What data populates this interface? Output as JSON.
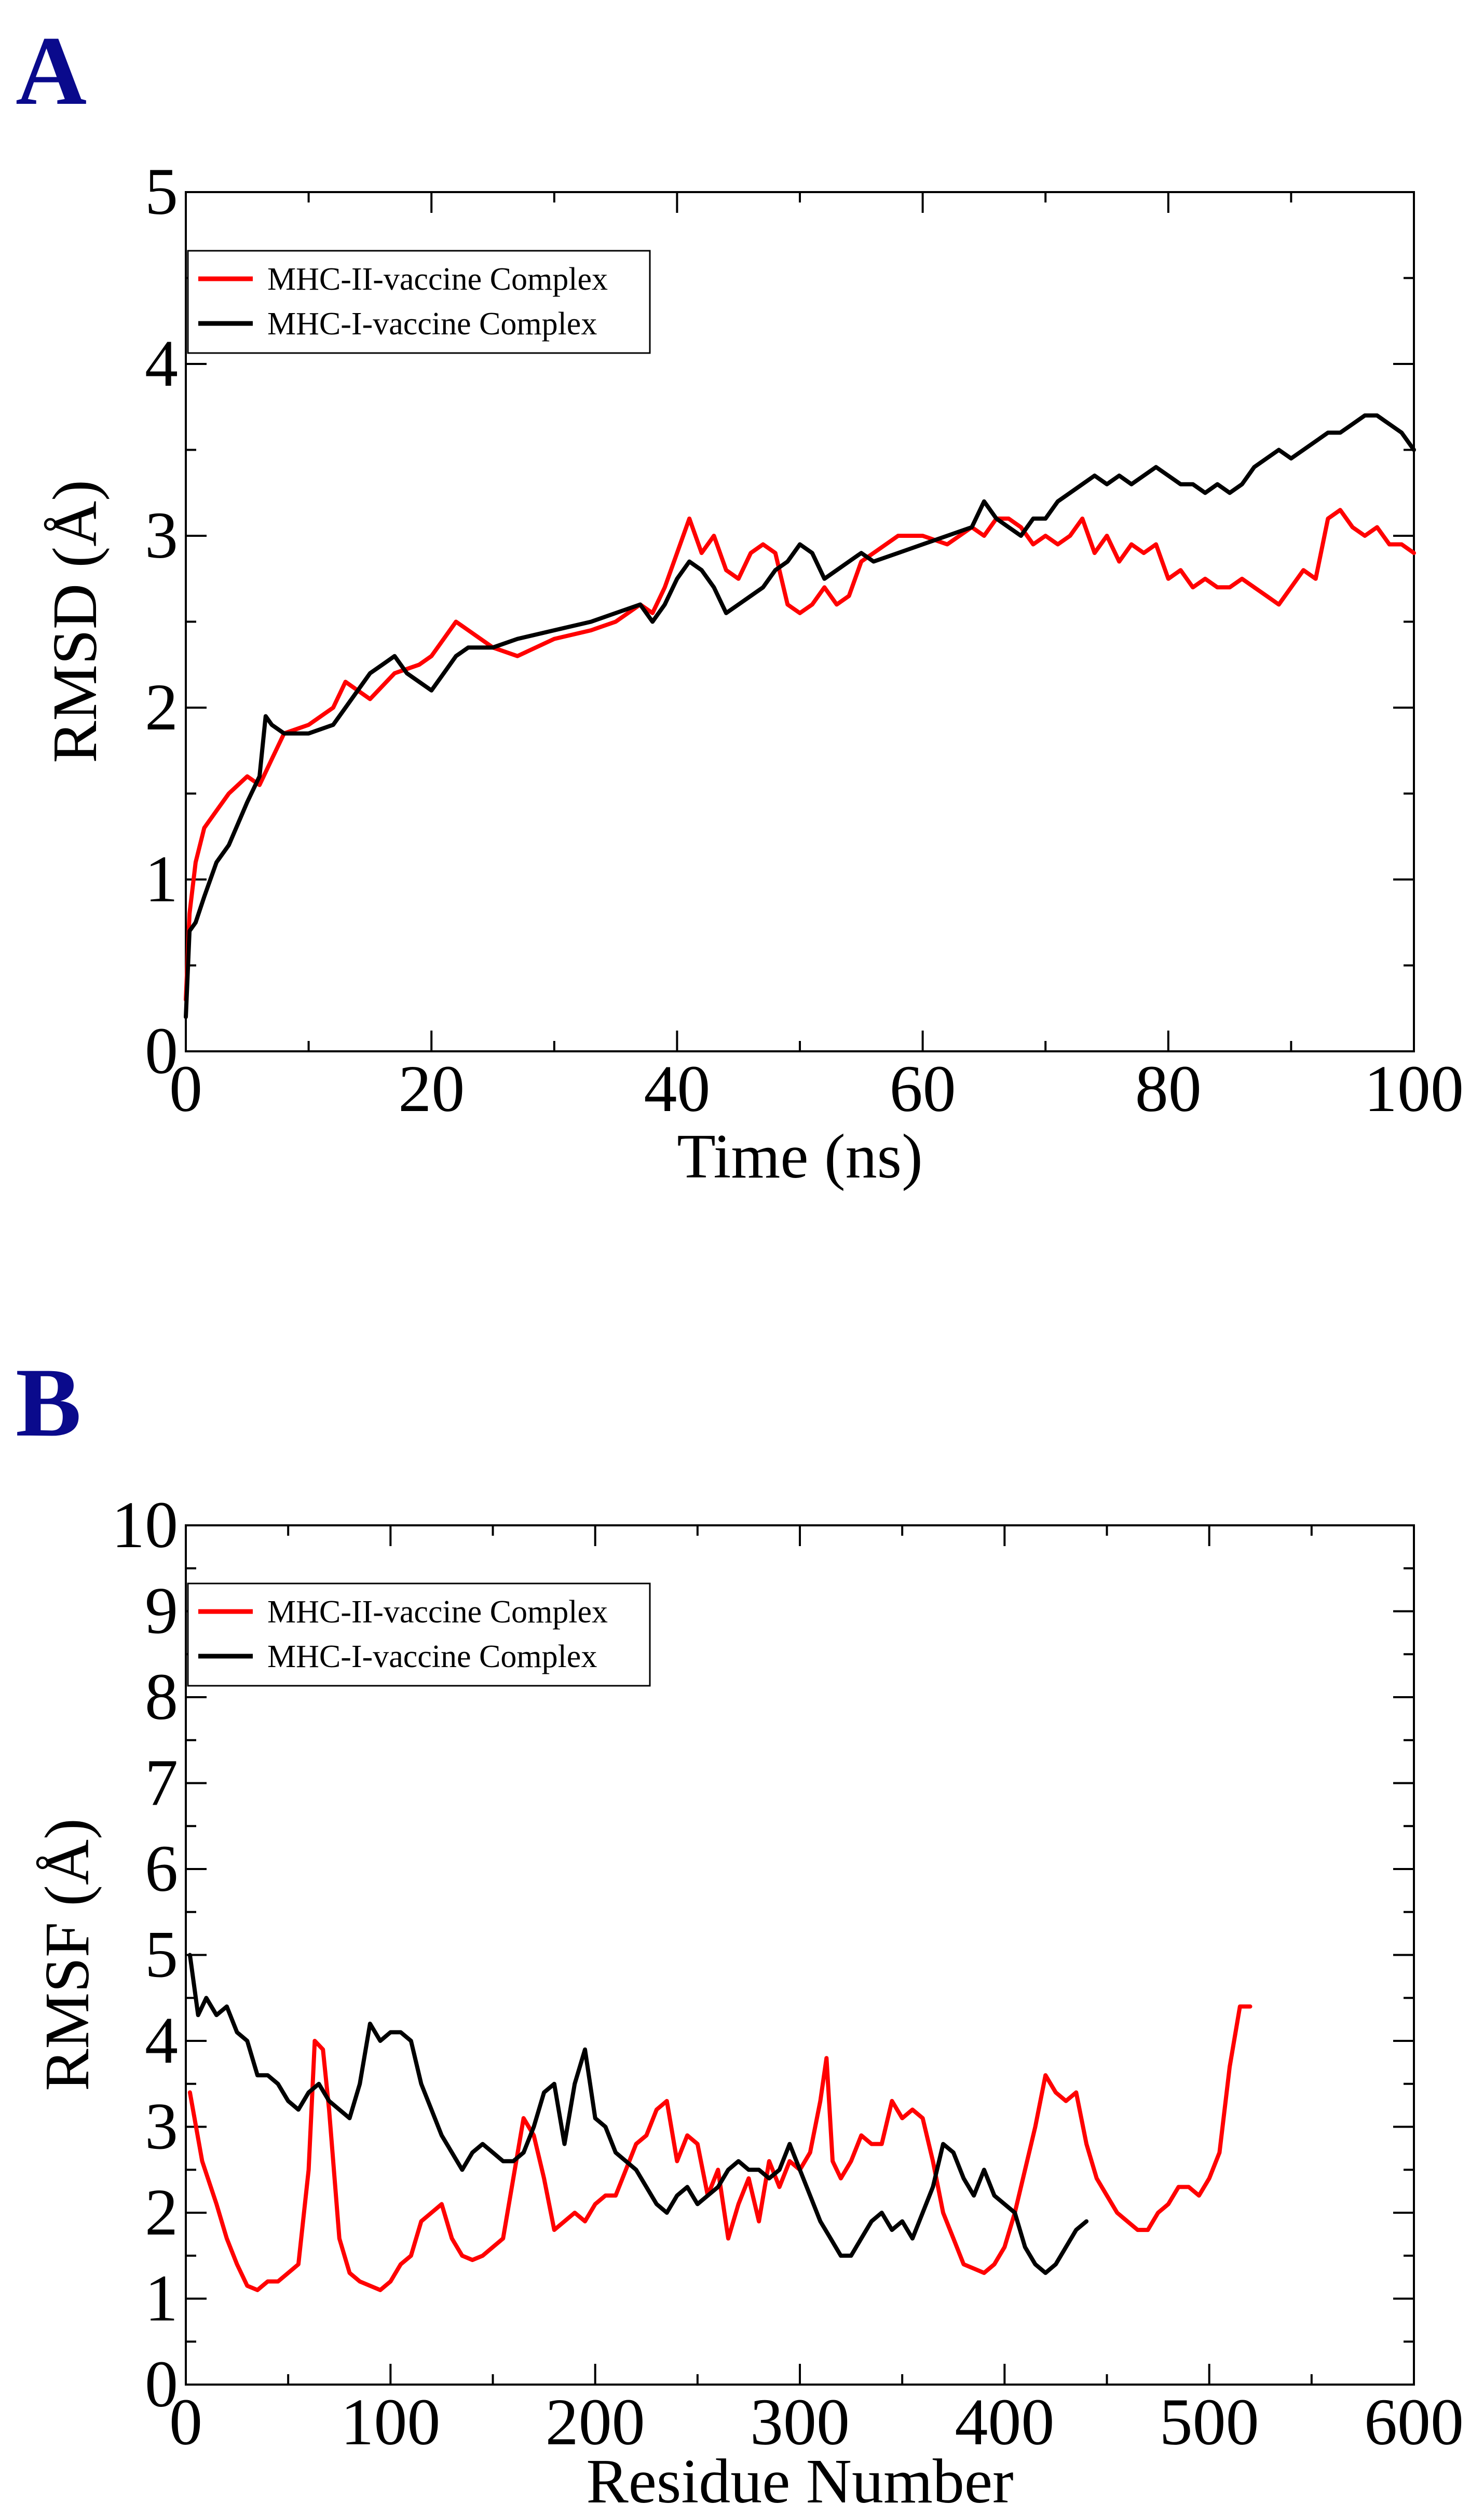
{
  "chart_data": [
    {
      "panel": "A",
      "type": "line",
      "xlabel": "Time (ns)",
      "ylabel": "RMSD (Å)",
      "xlim": [
        0,
        100
      ],
      "ylim": [
        0,
        5
      ],
      "x_ticks": [
        0,
        20,
        40,
        60,
        80,
        100
      ],
      "y_ticks": [
        0,
        1,
        2,
        3,
        4,
        5
      ],
      "legend_position": "top-left",
      "series": [
        {
          "name": "MHC-II-vaccine Complex",
          "color": "#ff0000",
          "x": [
            0,
            0.3,
            0.8,
            1.5,
            2.5,
            3.5,
            5,
            6,
            7,
            8,
            10,
            12,
            13,
            15,
            17,
            19,
            20,
            21,
            22,
            23,
            25,
            27,
            30,
            33,
            35,
            37,
            38,
            39,
            40,
            41,
            42,
            43,
            44,
            45,
            46,
            47,
            48,
            49,
            50,
            51,
            52,
            53,
            54,
            55,
            56,
            58,
            60,
            62,
            64,
            65,
            66,
            67,
            68,
            69,
            70,
            71,
            72,
            73,
            74,
            75,
            76,
            77,
            78,
            79,
            80,
            81,
            82,
            83,
            84,
            85,
            86,
            87,
            88,
            89,
            90,
            91,
            92,
            93,
            94,
            95,
            96,
            97,
            98,
            99,
            100
          ],
          "y": [
            0.3,
            0.8,
            1.1,
            1.3,
            1.4,
            1.5,
            1.6,
            1.55,
            1.7,
            1.85,
            1.9,
            2.0,
            2.15,
            2.05,
            2.2,
            2.25,
            2.3,
            2.4,
            2.5,
            2.45,
            2.35,
            2.3,
            2.4,
            2.45,
            2.5,
            2.6,
            2.55,
            2.7,
            2.9,
            3.1,
            2.9,
            3.0,
            2.8,
            2.75,
            2.9,
            2.95,
            2.9,
            2.6,
            2.55,
            2.6,
            2.7,
            2.6,
            2.65,
            2.85,
            2.9,
            3.0,
            3.0,
            2.95,
            3.05,
            3.0,
            3.1,
            3.1,
            3.05,
            2.95,
            3.0,
            2.95,
            3.0,
            3.1,
            2.9,
            3.0,
            2.85,
            2.95,
            2.9,
            2.95,
            2.75,
            2.8,
            2.7,
            2.75,
            2.7,
            2.7,
            2.75,
            2.7,
            2.65,
            2.6,
            2.7,
            2.8,
            2.75,
            3.1,
            3.15,
            3.05,
            3.0,
            3.05,
            2.95,
            2.95,
            2.9
          ]
        },
        {
          "name": "MHC-I-vaccine Complex",
          "color": "#000000",
          "x": [
            0,
            0.3,
            0.8,
            1.5,
            2.5,
            3.5,
            5,
            6,
            6.5,
            7,
            8,
            10,
            12,
            13,
            15,
            16,
            17,
            18,
            19,
            20,
            21,
            22,
            23,
            25,
            27,
            30,
            33,
            35,
            37,
            38,
            39,
            40,
            41,
            42,
            43,
            44,
            45,
            46,
            47,
            48,
            49,
            50,
            51,
            52,
            53,
            54,
            55,
            56,
            58,
            60,
            62,
            64,
            65,
            66,
            67,
            68,
            69,
            70,
            71,
            72,
            73,
            74,
            75,
            76,
            77,
            78,
            79,
            80,
            81,
            82,
            83,
            84,
            85,
            86,
            87,
            88,
            89,
            90,
            91,
            92,
            93,
            94,
            95,
            96,
            97,
            98,
            99,
            100
          ],
          "y": [
            0.2,
            0.7,
            0.75,
            0.9,
            1.1,
            1.2,
            1.45,
            1.6,
            1.95,
            1.9,
            1.85,
            1.85,
            1.9,
            2.0,
            2.2,
            2.25,
            2.3,
            2.2,
            2.15,
            2.1,
            2.2,
            2.3,
            2.35,
            2.35,
            2.4,
            2.45,
            2.5,
            2.55,
            2.6,
            2.5,
            2.6,
            2.75,
            2.85,
            2.8,
            2.7,
            2.55,
            2.6,
            2.65,
            2.7,
            2.8,
            2.85,
            2.95,
            2.9,
            2.75,
            2.8,
            2.85,
            2.9,
            2.85,
            2.9,
            2.95,
            3.0,
            3.05,
            3.2,
            3.1,
            3.05,
            3.0,
            3.1,
            3.1,
            3.2,
            3.25,
            3.3,
            3.35,
            3.3,
            3.35,
            3.3,
            3.35,
            3.4,
            3.35,
            3.3,
            3.3,
            3.25,
            3.3,
            3.25,
            3.3,
            3.4,
            3.45,
            3.5,
            3.45,
            3.5,
            3.55,
            3.6,
            3.6,
            3.65,
            3.7,
            3.7,
            3.65,
            3.6,
            3.5
          ]
        }
      ]
    },
    {
      "panel": "B",
      "type": "line",
      "xlabel": "Residue Number",
      "ylabel": "RMSF (Å)",
      "xlim": [
        0,
        600
      ],
      "ylim": [
        0,
        10
      ],
      "x_ticks": [
        0,
        100,
        200,
        300,
        400,
        500,
        600
      ],
      "y_ticks": [
        0,
        1,
        2,
        3,
        4,
        5,
        6,
        7,
        8,
        9,
        10
      ],
      "legend_position": "top-left",
      "series": [
        {
          "name": "MHC-II-vaccine Complex",
          "color": "#ff0000",
          "x": [
            2,
            8,
            15,
            20,
            25,
            30,
            35,
            40,
            45,
            50,
            55,
            60,
            63,
            67,
            70,
            75,
            80,
            85,
            90,
            95,
            100,
            105,
            110,
            115,
            120,
            125,
            130,
            135,
            140,
            145,
            150,
            155,
            160,
            165,
            170,
            175,
            180,
            185,
            190,
            195,
            200,
            205,
            210,
            215,
            220,
            225,
            230,
            235,
            240,
            245,
            250,
            255,
            260,
            265,
            270,
            275,
            280,
            285,
            290,
            295,
            300,
            305,
            310,
            313,
            316,
            320,
            325,
            330,
            335,
            340,
            345,
            350,
            355,
            360,
            365,
            370,
            375,
            380,
            385,
            390,
            395,
            400,
            405,
            410,
            415,
            420,
            425,
            430,
            435,
            440,
            445,
            450,
            455,
            460,
            465,
            470,
            475,
            480,
            485,
            490,
            495,
            500,
            505,
            510,
            515,
            520
          ],
          "y": [
            3.4,
            2.6,
            2.1,
            1.7,
            1.4,
            1.15,
            1.1,
            1.2,
            1.2,
            1.3,
            1.4,
            2.5,
            4.0,
            3.9,
            3.2,
            1.7,
            1.3,
            1.2,
            1.15,
            1.1,
            1.2,
            1.4,
            1.5,
            1.9,
            2.0,
            2.1,
            1.7,
            1.5,
            1.45,
            1.5,
            1.6,
            1.7,
            2.4,
            3.1,
            2.9,
            2.4,
            1.8,
            1.9,
            2.0,
            1.9,
            2.1,
            2.2,
            2.2,
            2.5,
            2.8,
            2.9,
            3.2,
            3.3,
            2.6,
            2.9,
            2.8,
            2.2,
            2.5,
            1.7,
            2.1,
            2.4,
            1.9,
            2.6,
            2.3,
            2.6,
            2.5,
            2.7,
            3.3,
            3.8,
            2.6,
            2.4,
            2.6,
            2.9,
            2.8,
            2.8,
            3.3,
            3.1,
            3.2,
            3.1,
            2.6,
            2.0,
            1.7,
            1.4,
            1.35,
            1.3,
            1.4,
            1.6,
            2.0,
            2.5,
            3.0,
            3.6,
            3.4,
            3.3,
            3.4,
            2.8,
            2.4,
            2.2,
            2.0,
            1.9,
            1.8,
            1.8,
            2.0,
            2.1,
            2.3,
            2.3,
            2.2,
            2.4,
            2.7,
            3.7,
            4.4,
            4.4
          ]
        },
        {
          "name": "MHC-I-vaccine Complex",
          "color": "#000000",
          "x": [
            2,
            6,
            10,
            15,
            20,
            25,
            30,
            35,
            40,
            45,
            50,
            55,
            60,
            65,
            70,
            75,
            80,
            85,
            90,
            95,
            100,
            105,
            110,
            115,
            120,
            125,
            130,
            135,
            140,
            145,
            150,
            155,
            160,
            165,
            170,
            175,
            180,
            185,
            190,
            195,
            200,
            205,
            210,
            215,
            220,
            225,
            230,
            235,
            240,
            245,
            250,
            255,
            260,
            265,
            270,
            275,
            280,
            285,
            290,
            295,
            300,
            305,
            310,
            315,
            320,
            325,
            330,
            335,
            340,
            345,
            350,
            355,
            360,
            365,
            370,
            375,
            380,
            385,
            390,
            395,
            400,
            405,
            410,
            415,
            420,
            425,
            430,
            435,
            440
          ],
          "y": [
            5.0,
            4.3,
            4.5,
            4.3,
            4.4,
            4.1,
            4.0,
            3.6,
            3.6,
            3.5,
            3.3,
            3.2,
            3.4,
            3.5,
            3.3,
            3.2,
            3.1,
            3.5,
            4.2,
            4.0,
            4.1,
            4.1,
            4.0,
            3.5,
            3.2,
            2.9,
            2.7,
            2.5,
            2.7,
            2.8,
            2.7,
            2.6,
            2.6,
            2.7,
            3.0,
            3.4,
            3.5,
            2.8,
            3.5,
            3.9,
            3.1,
            3.0,
            2.7,
            2.6,
            2.5,
            2.3,
            2.1,
            2.0,
            2.2,
            2.3,
            2.1,
            2.2,
            2.3,
            2.5,
            2.6,
            2.5,
            2.5,
            2.4,
            2.5,
            2.8,
            2.5,
            2.2,
            1.9,
            1.7,
            1.5,
            1.5,
            1.7,
            1.9,
            2.0,
            1.8,
            1.9,
            1.7,
            2.0,
            2.3,
            2.8,
            2.7,
            2.4,
            2.2,
            2.5,
            2.2,
            2.1,
            2.0,
            1.6,
            1.4,
            1.3,
            1.4,
            1.6,
            1.8,
            1.9
          ]
        }
      ]
    }
  ]
}
